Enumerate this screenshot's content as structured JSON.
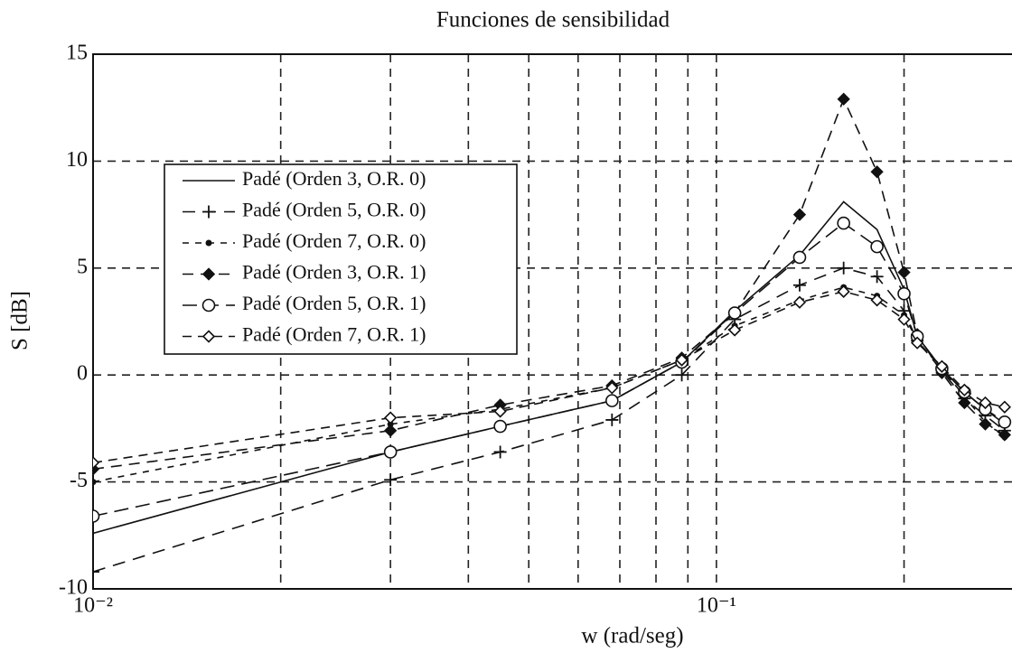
{
  "chart_data": {
    "type": "line",
    "title": "Funciones de sensibilidad",
    "x_label": "w (rad/seg)",
    "y_label": "S [dB]",
    "x_scale": "log",
    "grid": true,
    "xlim": [
      0.01,
      0.3
    ],
    "ylim": [
      -10,
      15
    ],
    "xticks": [
      {
        "value": 0.01,
        "label": "10⁻²"
      },
      {
        "value": 0.1,
        "label": "10⁻¹"
      }
    ],
    "xminor": [
      0.02,
      0.03,
      0.04,
      0.05,
      0.06,
      0.07,
      0.08,
      0.09,
      0.2,
      0.3
    ],
    "yticks": [
      15,
      10,
      5,
      0,
      -5,
      -10
    ],
    "legend": "upper left",
    "x": [
      0.01,
      0.03,
      0.045,
      0.068,
      0.088,
      0.107,
      0.136,
      0.16,
      0.181,
      0.2,
      0.21,
      0.23,
      0.25,
      0.27,
      0.29
    ],
    "series": [
      {
        "name": "Padé (Orden 3, O.R. 0)",
        "color": "#111111",
        "dash": "none",
        "marker": "none",
        "values": [
          -7.4,
          -3.6,
          -2.4,
          -1.2,
          0.6,
          3.0,
          5.6,
          8.1,
          6.8,
          4.0,
          1.8,
          0.3,
          -0.8,
          -1.6,
          -2.3
        ]
      },
      {
        "name": "Padé (Orden 5, O.R. 0)",
        "color": "#111111",
        "dash": "14 9",
        "marker": "plus",
        "values": [
          -9.2,
          -4.9,
          -3.6,
          -2.1,
          0.0,
          2.6,
          4.2,
          5.0,
          4.6,
          3.0,
          1.6,
          0.2,
          -1.1,
          -1.9,
          -2.6
        ]
      },
      {
        "name": "Padé (Orden 7, O.R. 0)",
        "color": "#111111",
        "dash": "7 7",
        "marker": "dot",
        "values": [
          -5.0,
          -2.3,
          -1.6,
          -0.6,
          0.7,
          2.3,
          3.5,
          4.1,
          3.7,
          2.8,
          1.6,
          0.3,
          -1.0,
          -2.2,
          -2.9
        ]
      },
      {
        "name": "Padé (Orden 3, O.R. 1)",
        "color": "#111111",
        "dash": "12 8",
        "marker": "filled-diamond",
        "values": [
          -4.4,
          -2.6,
          -1.4,
          -0.5,
          0.8,
          2.9,
          7.5,
          12.9,
          9.5,
          4.8,
          1.9,
          0.1,
          -1.3,
          -2.3,
          -2.8
        ]
      },
      {
        "name": "Padé (Orden 5, O.R. 1)",
        "color": "#111111",
        "dash": "16 8",
        "marker": "circle",
        "values": [
          -6.6,
          -3.6,
          -2.4,
          -1.2,
          0.6,
          2.9,
          5.5,
          7.1,
          6.0,
          3.8,
          1.8,
          0.3,
          -0.8,
          -1.6,
          -2.2
        ]
      },
      {
        "name": "Padé (Orden 7, O.R. 1)",
        "color": "#111111",
        "dash": "10 7",
        "marker": "diamond",
        "values": [
          -4.1,
          -2.0,
          -1.7,
          -0.6,
          0.7,
          2.1,
          3.4,
          3.9,
          3.5,
          2.6,
          1.5,
          0.4,
          -0.7,
          -1.3,
          -1.5
        ]
      }
    ]
  }
}
